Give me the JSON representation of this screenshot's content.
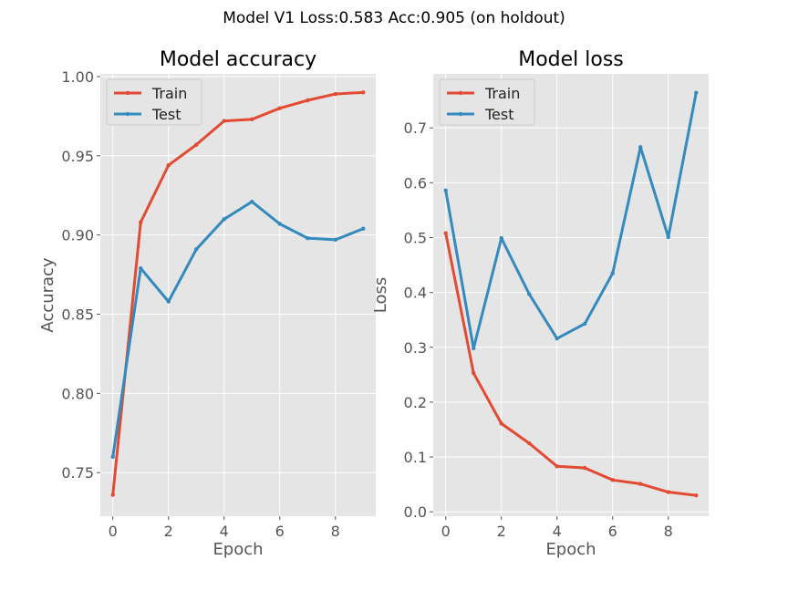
{
  "figure": {
    "suptitle": "Model V1 Loss:0.583 Acc:0.905 (on holdout)"
  },
  "chart_data": [
    {
      "type": "line",
      "title": "Model accuracy",
      "xlabel": "Epoch",
      "ylabel": "Accuracy",
      "x": [
        0,
        1,
        2,
        3,
        4,
        5,
        6,
        7,
        8,
        9
      ],
      "xlim": [
        -0.45,
        9.45
      ],
      "ylim": [
        0.7225,
        1.0017
      ],
      "xticks": [
        0,
        2,
        4,
        6,
        8
      ],
      "yticks": [
        0.75,
        0.8,
        0.85,
        0.9,
        0.95,
        1.0
      ],
      "ytick_labels": [
        "0.75",
        "0.80",
        "0.85",
        "0.90",
        "0.95",
        "1.00"
      ],
      "grid": true,
      "legend_position": "upper-left",
      "series": [
        {
          "name": "Train",
          "color": "#E24A33",
          "values": [
            0.736,
            0.908,
            0.944,
            0.957,
            0.972,
            0.973,
            0.98,
            0.985,
            0.989,
            0.99
          ]
        },
        {
          "name": "Test",
          "color": "#348ABD",
          "values": [
            0.76,
            0.879,
            0.858,
            0.891,
            0.91,
            0.921,
            0.907,
            0.898,
            0.897,
            0.904
          ]
        }
      ]
    },
    {
      "type": "line",
      "title": "Model loss",
      "xlabel": "Epoch",
      "ylabel": "Loss",
      "x": [
        0,
        1,
        2,
        3,
        4,
        5,
        6,
        7,
        8,
        9
      ],
      "xlim": [
        -0.45,
        9.45
      ],
      "ylim": [
        -0.008,
        0.7985
      ],
      "xticks": [
        0,
        2,
        4,
        6,
        8
      ],
      "yticks": [
        0.0,
        0.1,
        0.2,
        0.3,
        0.4,
        0.5,
        0.6,
        0.7
      ],
      "ytick_labels": [
        "0.0",
        "0.1",
        "0.2",
        "0.3",
        "0.4",
        "0.5",
        "0.6",
        "0.7"
      ],
      "grid": true,
      "legend_position": "upper-left",
      "series": [
        {
          "name": "Train",
          "color": "#E24A33",
          "values": [
            0.508,
            0.253,
            0.161,
            0.125,
            0.083,
            0.08,
            0.058,
            0.051,
            0.036,
            0.03
          ]
        },
        {
          "name": "Test",
          "color": "#348ABD",
          "values": [
            0.586,
            0.298,
            0.499,
            0.397,
            0.316,
            0.343,
            0.435,
            0.665,
            0.501,
            0.764
          ]
        }
      ]
    }
  ]
}
